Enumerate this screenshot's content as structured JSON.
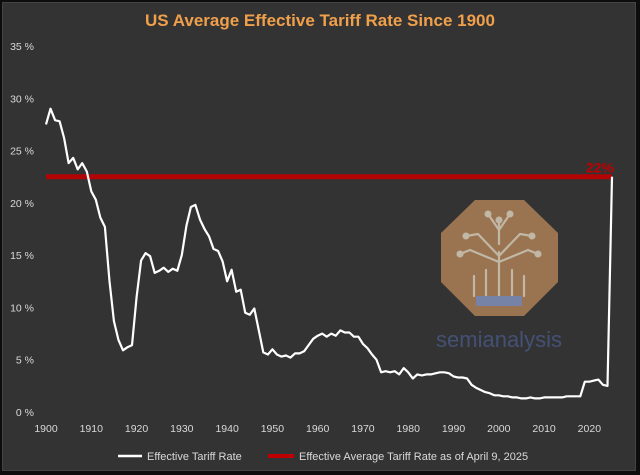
{
  "colors": {
    "background": "#333333",
    "title": "#f0a04b",
    "series_line": "#ffffff",
    "reference_line": "#c00000",
    "logo_badge": "#b8875a",
    "logo_text": "#4a5a8a"
  },
  "logo": {
    "text": "semianalysis"
  },
  "chart_data": {
    "type": "line",
    "title": "US Average Effective Tariff Rate Since 1900",
    "xlabel": "",
    "ylabel": "",
    "xlim": [
      1900,
      2025
    ],
    "ylim": [
      0,
      35
    ],
    "x_ticks": [
      "1900",
      "1910",
      "1920",
      "1930",
      "1940",
      "1950",
      "1960",
      "1970",
      "1980",
      "1990",
      "2000",
      "2010",
      "2020"
    ],
    "y_ticks": [
      "0 %",
      "5 %",
      "10 %",
      "15 %",
      "20 %",
      "25 %",
      "30 %",
      "35 %"
    ],
    "grid": false,
    "legend_position": "bottom",
    "series": [
      {
        "name": "Effective Tariff Rate",
        "x": [
          1900,
          1901,
          1902,
          1903,
          1904,
          1905,
          1906,
          1907,
          1908,
          1909,
          1910,
          1911,
          1912,
          1913,
          1914,
          1915,
          1916,
          1917,
          1918,
          1919,
          1920,
          1921,
          1922,
          1923,
          1924,
          1925,
          1926,
          1927,
          1928,
          1929,
          1930,
          1931,
          1932,
          1933,
          1934,
          1935,
          1936,
          1937,
          1938,
          1939,
          1940,
          1941,
          1942,
          1943,
          1944,
          1945,
          1946,
          1947,
          1948,
          1949,
          1950,
          1951,
          1952,
          1953,
          1954,
          1955,
          1956,
          1957,
          1958,
          1959,
          1960,
          1961,
          1962,
          1963,
          1964,
          1965,
          1966,
          1967,
          1968,
          1969,
          1970,
          1971,
          1972,
          1973,
          1974,
          1975,
          1976,
          1977,
          1978,
          1979,
          1980,
          1981,
          1982,
          1983,
          1984,
          1985,
          1986,
          1987,
          1988,
          1989,
          1990,
          1991,
          1992,
          1993,
          1994,
          1995,
          1996,
          1997,
          1998,
          1999,
          2000,
          2001,
          2002,
          2003,
          2004,
          2005,
          2006,
          2007,
          2008,
          2009,
          2010,
          2011,
          2012,
          2013,
          2014,
          2015,
          2016,
          2017,
          2018,
          2019,
          2020,
          2021,
          2022,
          2023,
          2024,
          2025
        ],
        "values": [
          27.5,
          29.0,
          27.9,
          27.8,
          26.2,
          23.8,
          24.3,
          23.2,
          23.8,
          23.0,
          21.1,
          20.3,
          18.6,
          17.7,
          12.6,
          8.7,
          6.9,
          5.9,
          6.2,
          6.4,
          11.0,
          14.5,
          15.2,
          14.9,
          13.3,
          13.5,
          13.8,
          13.4,
          13.7,
          13.5,
          15.0,
          17.8,
          19.6,
          19.8,
          18.4,
          17.5,
          16.8,
          15.6,
          15.4,
          14.4,
          12.5,
          13.6,
          11.5,
          11.7,
          9.5,
          9.3,
          9.9,
          7.8,
          5.7,
          5.5,
          6.0,
          5.5,
          5.3,
          5.4,
          5.2,
          5.6,
          5.6,
          5.8,
          6.4,
          7.0,
          7.3,
          7.5,
          7.2,
          7.5,
          7.3,
          7.8,
          7.6,
          7.6,
          7.2,
          7.2,
          6.5,
          6.1,
          5.5,
          5.0,
          3.8,
          3.9,
          3.8,
          3.9,
          3.6,
          4.2,
          3.8,
          3.2,
          3.6,
          3.5,
          3.6,
          3.6,
          3.7,
          3.8,
          3.8,
          3.7,
          3.4,
          3.3,
          3.3,
          3.2,
          2.6,
          2.3,
          2.1,
          1.9,
          1.8,
          1.6,
          1.6,
          1.5,
          1.5,
          1.4,
          1.4,
          1.3,
          1.3,
          1.4,
          1.3,
          1.3,
          1.4,
          1.4,
          1.4,
          1.4,
          1.4,
          1.5,
          1.5,
          1.5,
          1.5,
          2.9,
          2.9,
          3.0,
          3.1,
          2.6,
          2.5,
          22.5
        ]
      },
      {
        "name": "Effective Average Tariff Rate as of April 9, 2025",
        "x": [
          1900,
          2025
        ],
        "values": [
          22.5,
          22.5
        ]
      }
    ],
    "annotations": [
      "22%"
    ]
  }
}
